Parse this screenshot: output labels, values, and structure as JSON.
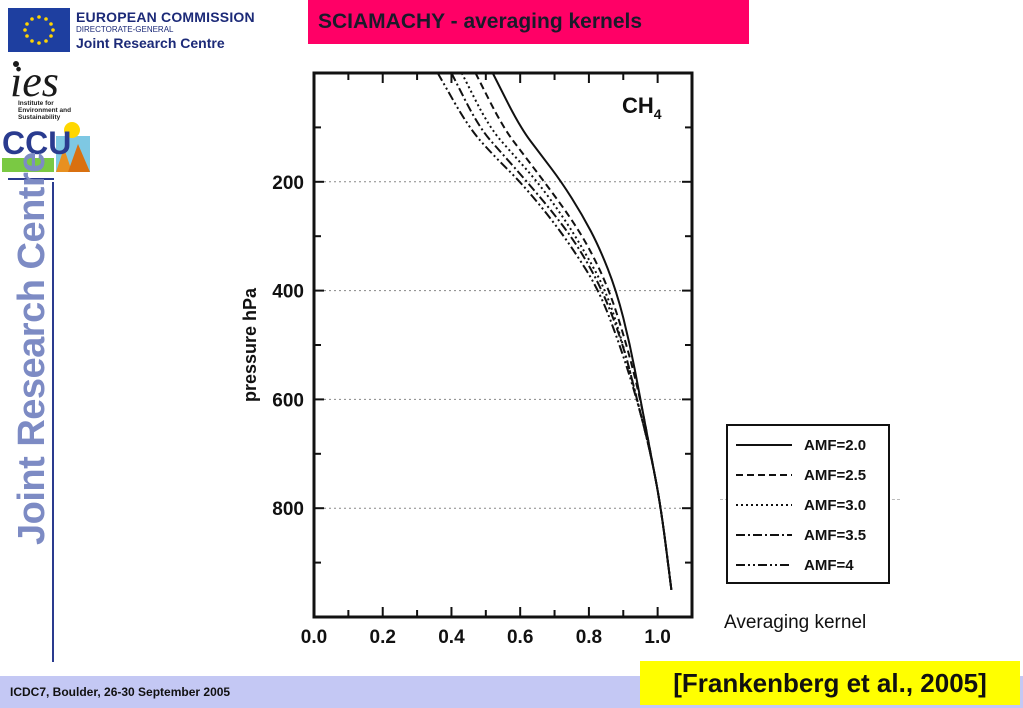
{
  "header": {
    "org_title": "EUROPEAN COMMISSION",
    "org_dg": "DIRECTORATE-GENERAL",
    "org_jrc": "Joint Research Centre",
    "ies_logo_text": "ies",
    "ies_tagline": [
      "Institute for",
      "Environment and",
      "Sustainability"
    ],
    "ccu_logo_text": "CCU"
  },
  "sidebar": {
    "vertical_text": "Joint Research Centre"
  },
  "slide": {
    "title": "SCIAMACHY - averaging kernels"
  },
  "footer": {
    "conference": "ICDC7, Boulder, 26-30 September 2005",
    "citation": "[Frankenberg et al., 2005]"
  },
  "colors": {
    "title_bg": "#ff0066",
    "footer_bg": "#c4c8f4",
    "citation_bg": "#ffff00",
    "sidebar_text": "#7d8bc4",
    "ec_blue": "#1e3fa0"
  },
  "icons": {
    "ec_flag": "eu-flag-icon",
    "ies": "ies-logo",
    "ccu": "ccu-logo"
  },
  "chart_data": {
    "type": "line",
    "annotation": "CH",
    "annotation_sub": "4",
    "ylabel": "pressure hPa",
    "xlabel": "Averaging kernel",
    "xlim": [
      0.0,
      1.1
    ],
    "ylim": [
      1000,
      0
    ],
    "yaxis_reversed": true,
    "xticks": [
      "0.0",
      "0.2",
      "0.4",
      "0.6",
      "0.8",
      "1.0"
    ],
    "yticks": [
      "200",
      "400",
      "600",
      "800"
    ],
    "ytick_values": [
      200,
      400,
      600,
      800
    ],
    "xtick_values": [
      0.0,
      0.2,
      0.4,
      0.6,
      0.8,
      1.0
    ],
    "grid": "horizontal-dotted",
    "legend_position": "right",
    "series": [
      {
        "name": "AMF=2.0",
        "style": "solid",
        "x": [
          0.52,
          0.6,
          0.66,
          0.72,
          0.78,
          0.83,
          0.88,
          0.92,
          0.95,
          0.98,
          1.01,
          1.04
        ],
        "y": [
          0,
          100,
          150,
          200,
          260,
          320,
          400,
          500,
          600,
          700,
          800,
          950
        ]
      },
      {
        "name": "AMF=2.5",
        "style": "dashed",
        "x": [
          0.47,
          0.55,
          0.61,
          0.67,
          0.74,
          0.8,
          0.86,
          0.91,
          0.95,
          0.98,
          1.01,
          1.04
        ],
        "y": [
          0,
          100,
          150,
          200,
          260,
          320,
          400,
          500,
          600,
          700,
          800,
          950
        ]
      },
      {
        "name": "AMF=3.0",
        "style": "dotted",
        "x": [
          0.43,
          0.51,
          0.58,
          0.65,
          0.72,
          0.78,
          0.85,
          0.9,
          0.94,
          0.98,
          1.01,
          1.04
        ],
        "y": [
          0,
          100,
          150,
          200,
          260,
          320,
          400,
          500,
          600,
          700,
          800,
          950
        ]
      },
      {
        "name": "AMF=3.5",
        "style": "dashdot",
        "x": [
          0.4,
          0.48,
          0.55,
          0.62,
          0.7,
          0.77,
          0.84,
          0.9,
          0.94,
          0.98,
          1.01,
          1.04
        ],
        "y": [
          0,
          100,
          150,
          200,
          260,
          320,
          400,
          500,
          600,
          700,
          800,
          950
        ]
      },
      {
        "name": "AMF=4",
        "style": "dashdotdot",
        "x": [
          0.36,
          0.45,
          0.52,
          0.6,
          0.68,
          0.75,
          0.83,
          0.89,
          0.94,
          0.98,
          1.01,
          1.04
        ],
        "y": [
          0,
          100,
          150,
          200,
          260,
          320,
          400,
          500,
          600,
          700,
          800,
          950
        ]
      }
    ]
  }
}
